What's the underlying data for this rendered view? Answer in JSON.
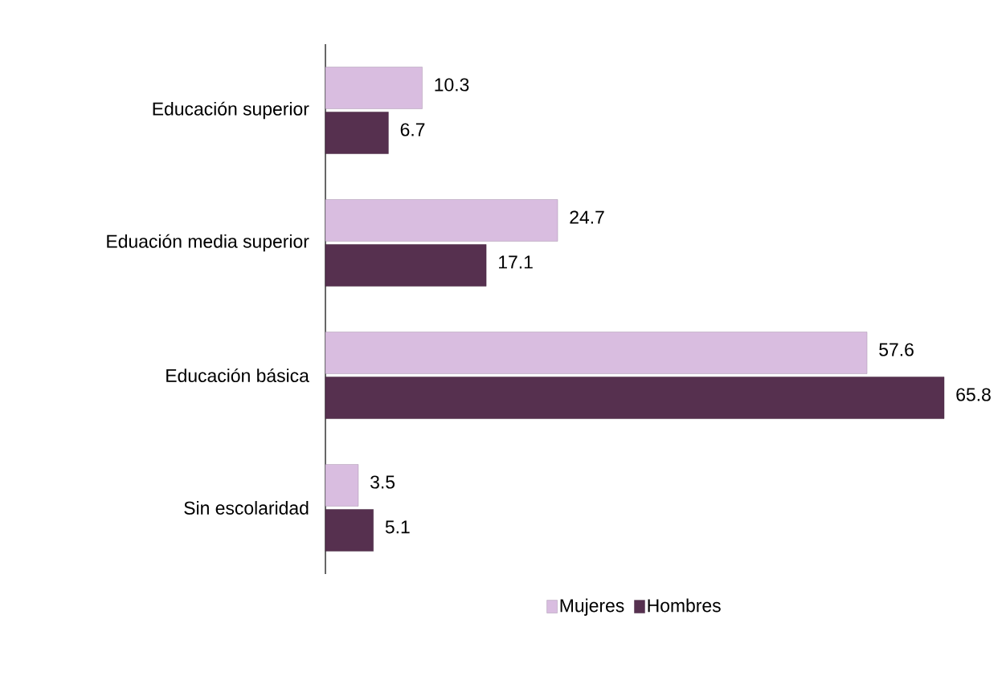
{
  "chart_data": {
    "type": "bar",
    "orientation": "horizontal",
    "categories": [
      "Educación superior",
      "Eduación media superior",
      "Educación básica",
      "Sin escolaridad"
    ],
    "series": [
      {
        "name": "Mujeres",
        "color": "#d9bde0",
        "values": [
          10.3,
          24.7,
          57.6,
          3.5
        ]
      },
      {
        "name": "Hombres",
        "color": "#56304f",
        "values": [
          6.7,
          17.1,
          65.8,
          5.1
        ]
      }
    ],
    "data_labels": true,
    "legend": "bottom"
  }
}
